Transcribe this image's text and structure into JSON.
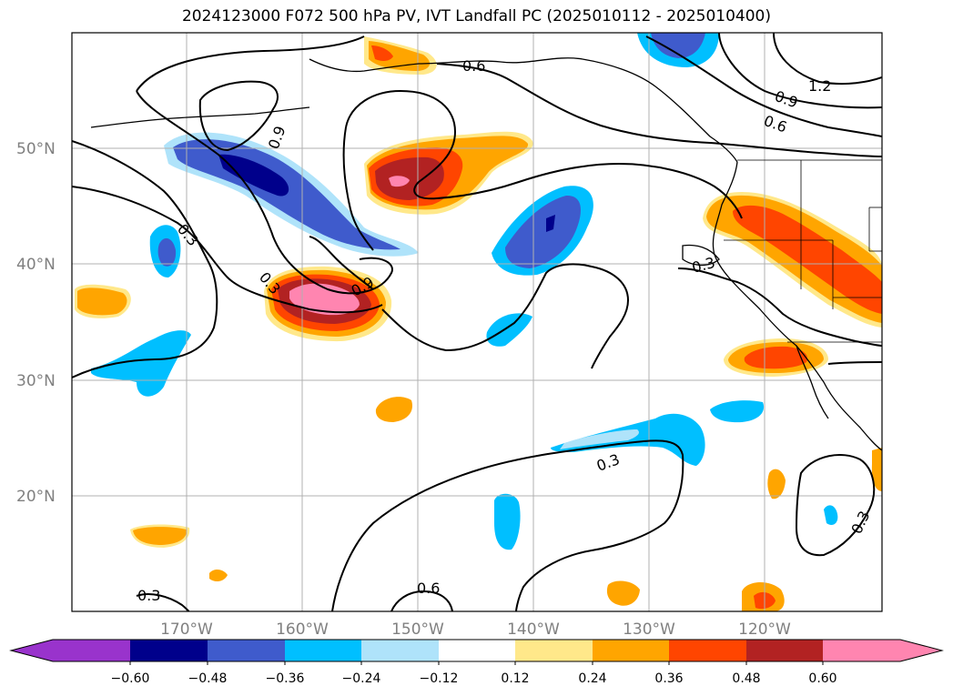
{
  "title": "2024123000 F072 500 hPa PV, IVT Landfall PC (2025010112 - 2025010400)",
  "map": {
    "lat_labels": [
      "50°N",
      "40°N",
      "30°N",
      "20°N"
    ],
    "lon_labels": [
      "170°W",
      "160°W",
      "150°W",
      "140°W",
      "130°W",
      "120°W"
    ],
    "contour_labels": [
      "0.6",
      "1.2",
      "0.9",
      "0.6",
      "0.9",
      "0.3",
      "0.3",
      "0.9",
      "0.3",
      "0.3",
      "0.3",
      "0.6",
      "0.3"
    ],
    "colors": {
      "land_outline": "#000000",
      "grid": "#b0b0b0"
    }
  },
  "colorbar": {
    "ticks": [
      "−0.60",
      "−0.48",
      "−0.36",
      "−0.24",
      "−0.12",
      "0.12",
      "0.24",
      "0.36",
      "0.48",
      "0.60"
    ],
    "colors": [
      "#9933cc",
      "#00008b",
      "#3f5bcc",
      "#00bfff",
      "#afe3fa",
      "#ffffff",
      "#ffe88a",
      "#ffa500",
      "#ff4500",
      "#b22222",
      "#ff85b0"
    ]
  }
}
